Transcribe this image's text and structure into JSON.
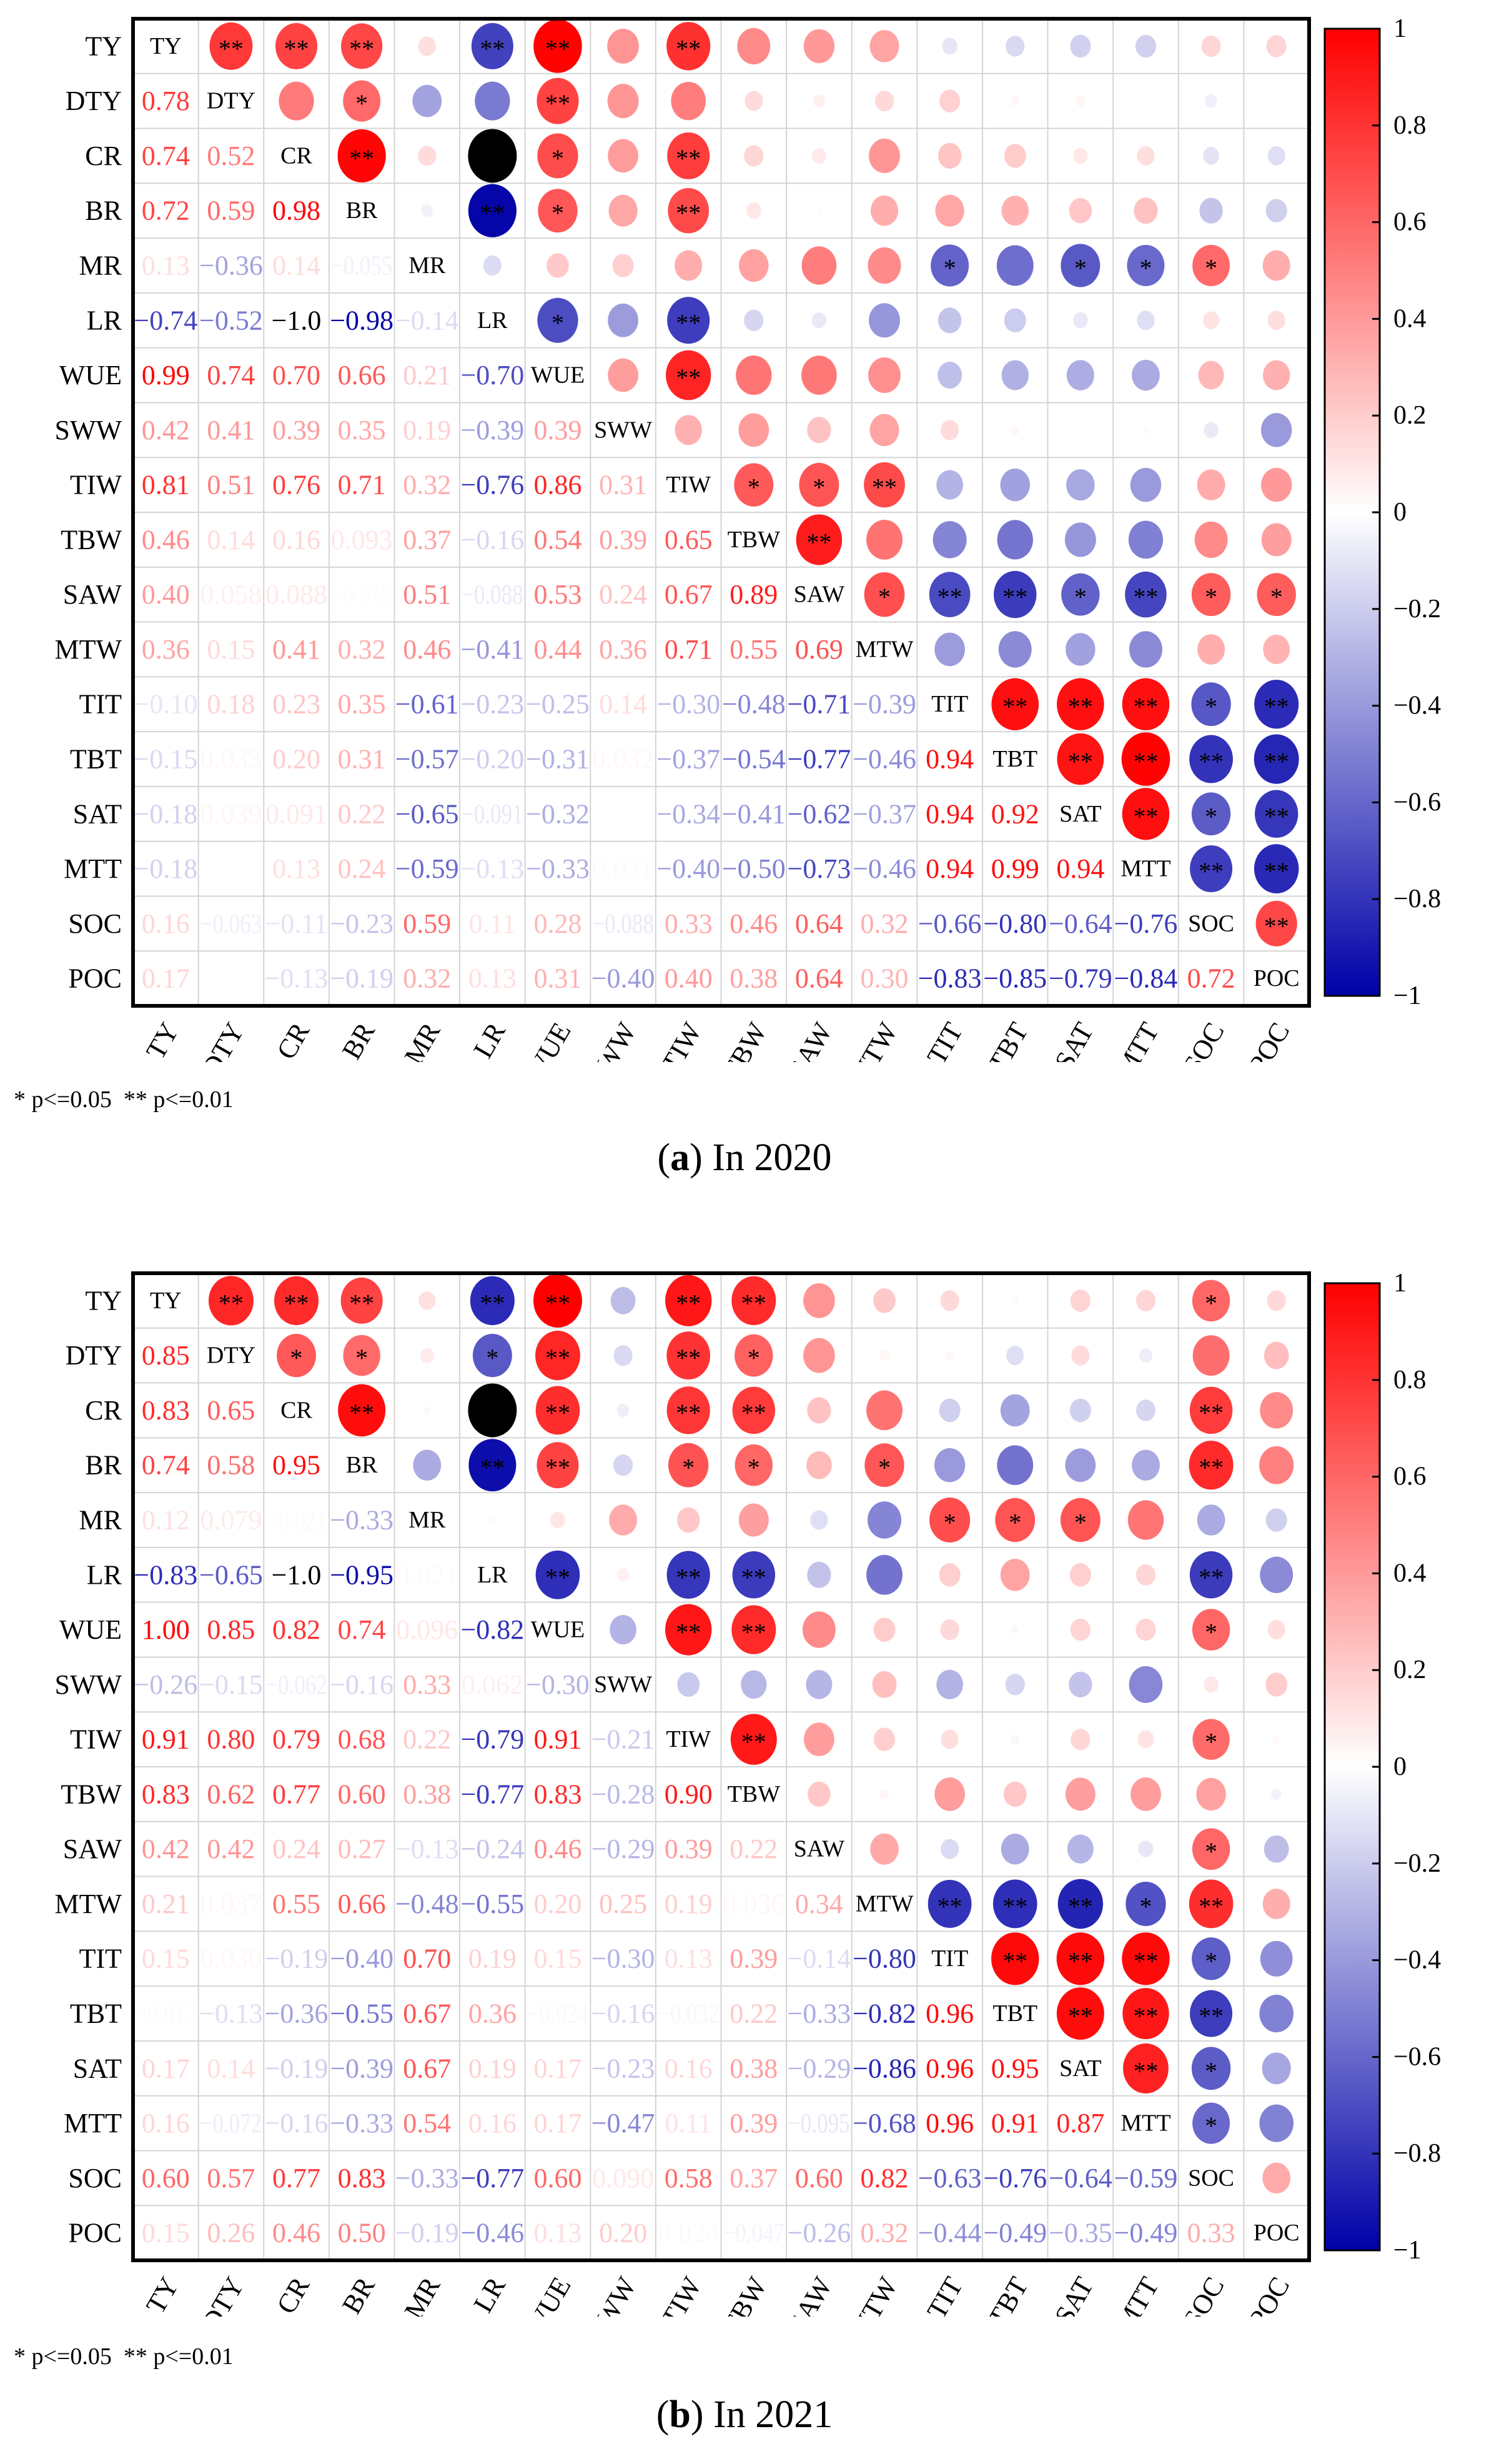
{
  "chart_data": {
    "type": "heatmap",
    "subtype": "correlation-matrix (lower: coefficients, upper: circles + significance)",
    "variables": [
      "TY",
      "DTY",
      "CR",
      "BR",
      "MR",
      "LR",
      "WUE",
      "SWW",
      "TIW",
      "TBW",
      "SAW",
      "MTW",
      "TIT",
      "TBT",
      "SAT",
      "MTT",
      "SOC",
      "POC"
    ],
    "footnote": "* p<=0.05  ** p<=0.01",
    "colorbar": {
      "range": [
        -1,
        1
      ],
      "ticks": [
        "1",
        "0.8",
        "0.6",
        "0.4",
        "0.2",
        "0",
        "−0.2",
        "−0.4",
        "−0.6",
        "−0.8",
        "−1"
      ],
      "colors": {
        "positive": "#FF0000",
        "zero": "#FFFFFF",
        "negative": "#0000A8",
        "out_of_range": "#000000"
      }
    },
    "panels": [
      {
        "label": "a",
        "caption": "In 2020",
        "lower": [
          [],
          [
            "0.78"
          ],
          [
            "0.74",
            "0.52"
          ],
          [
            "0.72",
            "0.59",
            "0.98"
          ],
          [
            "0.13",
            "−0.36",
            "0.14",
            "−0.055"
          ],
          [
            "−0.74",
            "−0.52",
            "−1.0",
            "−0.98",
            "−0.14"
          ],
          [
            "0.99",
            "0.74",
            "0.70",
            "0.66",
            "0.21",
            "−0.70"
          ],
          [
            "0.42",
            "0.41",
            "0.39",
            "0.35",
            "0.19",
            "−0.39",
            "0.39"
          ],
          [
            "0.81",
            "0.51",
            "0.76",
            "0.71",
            "0.32",
            "−0.76",
            "0.86",
            "0.31"
          ],
          [
            "0.46",
            "0.14",
            "0.16",
            "0.093",
            "0.37",
            "−0.16",
            "0.54",
            "0.39",
            "0.65"
          ],
          [
            "0.40",
            "0.058",
            "0.088",
            "−0.012",
            "0.51",
            "−0.088",
            "0.53",
            "0.24",
            "0.67",
            "0.89"
          ],
          [
            "0.36",
            "0.15",
            "0.41",
            "0.32",
            "0.46",
            "−0.41",
            "0.44",
            "0.36",
            "0.71",
            "0.55",
            "0.69"
          ],
          [
            "−0.10",
            "0.18",
            "0.23",
            "0.35",
            "−0.61",
            "−0.23",
            "−0.25",
            "0.14",
            "−0.30",
            "−0.48",
            "−0.71",
            "−0.39"
          ],
          [
            "−0.15",
            "0.033",
            "0.20",
            "0.31",
            "−0.57",
            "−0.20",
            "−0.31",
            "0.032",
            "−0.37",
            "−0.54",
            "−0.77",
            "−0.46",
            "0.94"
          ],
          [
            "−0.18",
            "0.039",
            "0.091",
            "0.22",
            "−0.65",
            "−0.091",
            "−0.32",
            "1.7E−4",
            "−0.34",
            "−0.41",
            "−0.62",
            "−0.37",
            "0.94",
            "0.92"
          ],
          [
            "−0.18",
            "",
            "0.13",
            "0.24",
            "−0.59",
            "−0.13",
            "−0.33",
            "0.021",
            "−0.40",
            "−0.50",
            "−0.73",
            "−0.46",
            "0.94",
            "0.99",
            "0.94"
          ],
          [
            "0.16",
            "−0.063",
            "−0.11",
            "−0.23",
            "0.59",
            "0.11",
            "0.28",
            "−0.088",
            "0.33",
            "0.46",
            "0.64",
            "0.32",
            "−0.66",
            "−0.80",
            "−0.64",
            "−0.76"
          ],
          [
            "0.17",
            "",
            "−0.13",
            "−0.19",
            "0.32",
            "0.13",
            "0.31",
            "−0.40",
            "0.40",
            "0.38",
            "0.64",
            "0.30",
            "−0.83",
            "−0.85",
            "−0.79",
            "−0.84",
            "0.72"
          ]
        ],
        "stars": {
          "TY": {
            "DTY": "**",
            "CR": "**",
            "BR": "**",
            "LR": "**",
            "WUE": "**",
            "TIW": "**"
          },
          "DTY": {
            "BR": "*",
            "WUE": "**"
          },
          "CR": {
            "BR": "**",
            "WUE": "*",
            "TIW": "**"
          },
          "BR": {
            "LR": "**",
            "WUE": "*",
            "TIW": "**"
          },
          "MR": {
            "TIT": "*",
            "SAT": "*",
            "MTT": "*",
            "SOC": "*"
          },
          "LR": {
            "WUE": "*",
            "TIW": "**"
          },
          "WUE": {
            "TIW": "**"
          },
          "TIW": {
            "TBW": "*",
            "SAW": "*",
            "MTW": "**"
          },
          "TBW": {
            "SAW": "**"
          },
          "SAW": {
            "MTW": "*",
            "TIT": "**",
            "TBT": "**",
            "SAT": "*",
            "MTT": "**",
            "SOC": "*",
            "POC": "*"
          },
          "TIT": {
            "TBT": "**",
            "SAT": "**",
            "MTT": "**",
            "SOC": "*",
            "POC": "**"
          },
          "TBT": {
            "SAT": "**",
            "MTT": "**",
            "SOC": "**",
            "POC": "**"
          },
          "SAT": {
            "MTT": "**",
            "SOC": "*",
            "POC": "**"
          },
          "MTT": {
            "SOC": "**",
            "POC": "**"
          },
          "SOC": {
            "POC": "**"
          }
        }
      },
      {
        "label": "b",
        "caption": "In 2021",
        "lower": [
          [],
          [
            "0.85"
          ],
          [
            "0.83",
            "0.65"
          ],
          [
            "0.74",
            "0.58",
            "0.95"
          ],
          [
            "0.12",
            "0.079",
            "−0.021",
            "−0.33"
          ],
          [
            "−0.83",
            "−0.65",
            "−1.0",
            "−0.95",
            "0.021"
          ],
          [
            "1.00",
            "0.85",
            "0.82",
            "0.74",
            "0.096",
            "−0.82"
          ],
          [
            "−0.26",
            "−0.15",
            "−0.062",
            "−0.16",
            "0.33",
            "0.062",
            "−0.30"
          ],
          [
            "0.91",
            "0.80",
            "0.79",
            "0.68",
            "0.22",
            "−0.79",
            "0.91",
            "−0.21"
          ],
          [
            "0.83",
            "0.62",
            "0.77",
            "0.60",
            "0.38",
            "−0.77",
            "0.83",
            "−0.28",
            "0.90"
          ],
          [
            "0.42",
            "0.42",
            "0.24",
            "0.27",
            "−0.13",
            "−0.24",
            "0.46",
            "−0.29",
            "0.39",
            "0.22"
          ],
          [
            "0.21",
            "0.037",
            "0.55",
            "0.66",
            "−0.48",
            "−0.55",
            "0.20",
            "0.25",
            "0.19",
            "0.036",
            "0.34"
          ],
          [
            "0.15",
            "0.030",
            "−0.19",
            "−0.40",
            "0.70",
            "0.19",
            "0.15",
            "−0.30",
            "0.13",
            "0.39",
            "−0.14",
            "−0.80"
          ],
          [
            "−0.017",
            "−0.13",
            "−0.36",
            "−0.55",
            "0.67",
            "0.36",
            "−0.024",
            "−0.16",
            "−0.032",
            "0.22",
            "−0.33",
            "−0.82",
            "0.96"
          ],
          [
            "0.17",
            "0.14",
            "−0.19",
            "−0.39",
            "0.67",
            "0.19",
            "0.17",
            "−0.23",
            "0.16",
            "0.38",
            "−0.29",
            "−0.86",
            "0.96",
            "0.95"
          ],
          [
            "0.16",
            "−0.072",
            "−0.16",
            "−0.33",
            "0.54",
            "0.16",
            "0.17",
            "−0.47",
            "0.11",
            "0.39",
            "−0.095",
            "−0.68",
            "0.96",
            "0.91",
            "0.87"
          ],
          [
            "0.60",
            "0.57",
            "0.77",
            "0.83",
            "−0.33",
            "−0.77",
            "0.60",
            "0.090",
            "0.58",
            "0.37",
            "0.60",
            "0.82",
            "−0.63",
            "−0.76",
            "−0.64",
            "−0.59"
          ],
          [
            "0.15",
            "0.26",
            "0.46",
            "0.50",
            "−0.19",
            "−0.46",
            "0.13",
            "0.20",
            "0.024",
            "−0.047",
            "−0.26",
            "0.32",
            "−0.44",
            "−0.49",
            "−0.35",
            "−0.49",
            "0.33"
          ]
        ],
        "stars": {
          "TY": {
            "DTY": "**",
            "CR": "**",
            "BR": "**",
            "LR": "**",
            "WUE": "**",
            "TIW": "**",
            "TBW": "**",
            "SOC": "*"
          },
          "DTY": {
            "CR": "*",
            "BR": "*",
            "LR": "*",
            "WUE": "**",
            "TIW": "**",
            "TBW": "*"
          },
          "CR": {
            "BR": "**",
            "WUE": "**",
            "TIW": "**",
            "TBW": "**",
            "SOC": "**"
          },
          "BR": {
            "LR": "**",
            "WUE": "**",
            "TIW": "*",
            "TBW": "*",
            "MTW": "*",
            "SOC": "**"
          },
          "MR": {
            "TIT": "*",
            "TBT": "*",
            "SAT": "*"
          },
          "LR": {
            "WUE": "**",
            "TIW": "**",
            "TBW": "**",
            "SOC": "**"
          },
          "WUE": {
            "TIW": "**",
            "TBW": "**",
            "SOC": "*"
          },
          "TIW": {
            "TBW": "**",
            "SOC": "*"
          },
          "SAW": {
            "SOC": "*"
          },
          "MTW": {
            "TIT": "**",
            "TBT": "**",
            "SAT": "**",
            "MTT": "*",
            "SOC": "**"
          },
          "TIT": {
            "TBT": "**",
            "SAT": "**",
            "MTT": "**",
            "SOC": "*"
          },
          "TBT": {
            "SAT": "**",
            "MTT": "**",
            "SOC": "**"
          },
          "SAT": {
            "MTT": "**",
            "SOC": "*"
          },
          "MTT": {
            "SOC": "*"
          }
        }
      }
    ]
  }
}
